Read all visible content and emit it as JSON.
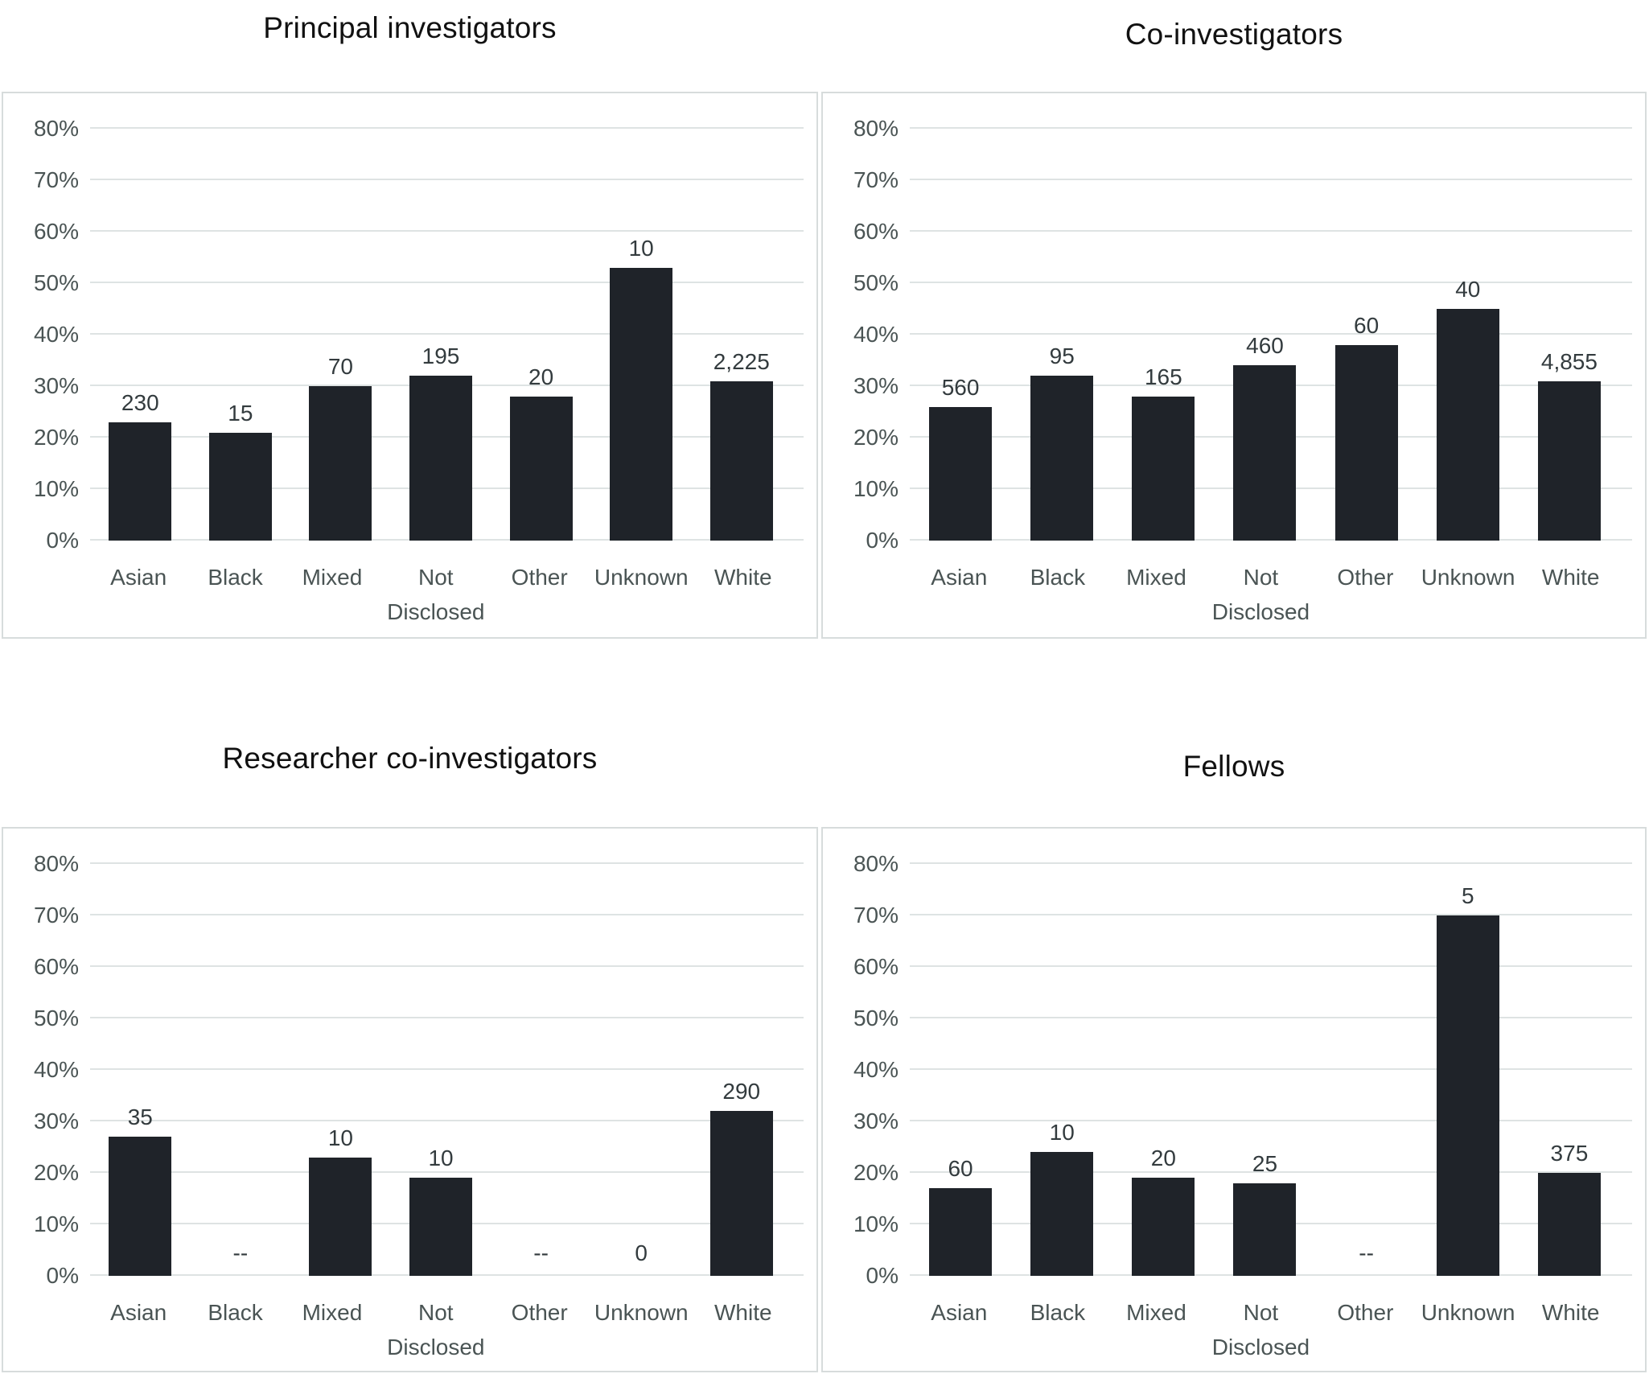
{
  "axis": {
    "y_ticks": [
      "0%",
      "10%",
      "20%",
      "30%",
      "40%",
      "50%",
      "60%",
      "70%",
      "80%"
    ],
    "ymax_percent": 80
  },
  "colors": {
    "bar": "#1f2329",
    "gridline": "#dee3e3",
    "panel_border": "#d7dcdc",
    "axis_text": "#4a5454",
    "value_text": "#333b3e",
    "title_text": "#111111",
    "background": "#ffffff"
  },
  "chart_data": [
    {
      "type": "bar",
      "title": "Principal investigators",
      "categories": [
        "Asian",
        "Black",
        "Mixed",
        "Not Disclosed",
        "Other",
        "Unknown",
        "White"
      ],
      "values_percent": [
        23,
        21,
        30,
        32,
        28,
        53,
        31
      ],
      "bar_labels": [
        "230",
        "15",
        "70",
        "195",
        "20",
        "10",
        "2,225"
      ],
      "xlabel": "",
      "ylabel": "",
      "ylim": [
        0,
        80
      ],
      "ytick_step": 10,
      "grid": true,
      "legend": false
    },
    {
      "type": "bar",
      "title": "Co-investigators",
      "categories": [
        "Asian",
        "Black",
        "Mixed",
        "Not Disclosed",
        "Other",
        "Unknown",
        "White"
      ],
      "values_percent": [
        26,
        32,
        28,
        34,
        38,
        45,
        31
      ],
      "bar_labels": [
        "560",
        "95",
        "165",
        "460",
        "60",
        "40",
        "4,855"
      ],
      "xlabel": "",
      "ylabel": "",
      "ylim": [
        0,
        80
      ],
      "ytick_step": 10,
      "grid": true,
      "legend": false
    },
    {
      "type": "bar",
      "title": "Researcher co-investigators",
      "categories": [
        "Asian",
        "Black",
        "Mixed",
        "Not Disclosed",
        "Other",
        "Unknown",
        "White"
      ],
      "values_percent": [
        27,
        null,
        23,
        19,
        null,
        0,
        32
      ],
      "bar_labels": [
        "35",
        "--",
        "10",
        "10",
        "--",
        "0",
        "290"
      ],
      "xlabel": "",
      "ylabel": "",
      "ylim": [
        0,
        80
      ],
      "ytick_step": 10,
      "grid": true,
      "legend": false
    },
    {
      "type": "bar",
      "title": "Fellows",
      "categories": [
        "Asian",
        "Black",
        "Mixed",
        "Not Disclosed",
        "Other",
        "Unknown",
        "White"
      ],
      "values_percent": [
        17,
        24,
        19,
        18,
        null,
        70,
        20
      ],
      "bar_labels": [
        "60",
        "10",
        "20",
        "25",
        "--",
        "5",
        "375"
      ],
      "xlabel": "",
      "ylabel": "",
      "ylim": [
        0,
        80
      ],
      "ytick_step": 10,
      "grid": true,
      "legend": false
    }
  ]
}
